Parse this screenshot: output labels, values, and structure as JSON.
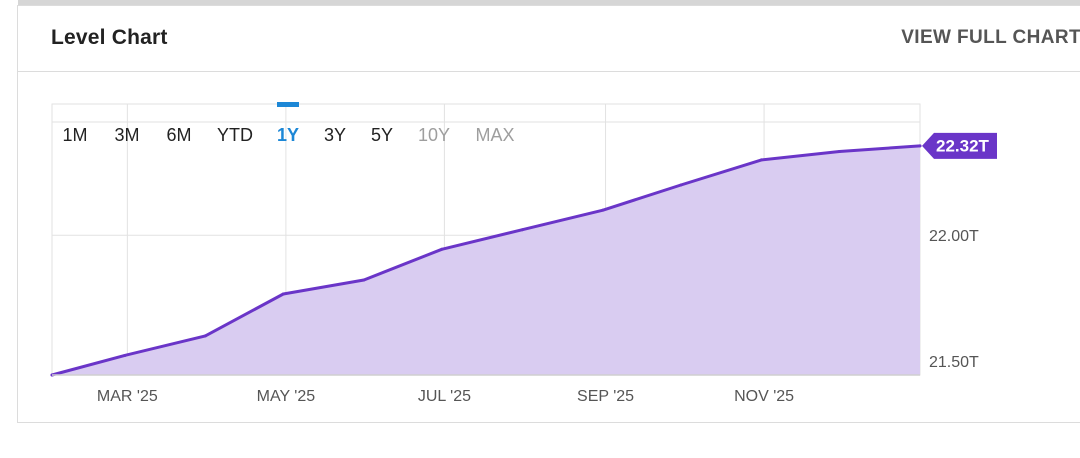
{
  "card": {
    "title": "Level Chart",
    "view_full_chart": "VIEW FULL CHART"
  },
  "colors": {
    "line": "#6a35c8",
    "fill": "#d9ccf1",
    "active_range": "#1c87d6",
    "disabled_range": "#9e9e9e",
    "grid": "#e2e2e2",
    "axis_text": "#555555",
    "value_badge": "#6a35c8"
  },
  "ranges": [
    {
      "label": "1M",
      "state": "normal"
    },
    {
      "label": "3M",
      "state": "normal"
    },
    {
      "label": "6M",
      "state": "normal"
    },
    {
      "label": "YTD",
      "state": "normal"
    },
    {
      "label": "1Y",
      "state": "active"
    },
    {
      "label": "3Y",
      "state": "normal"
    },
    {
      "label": "5Y",
      "state": "normal"
    },
    {
      "label": "10Y",
      "state": "disabled"
    },
    {
      "label": "MAX",
      "state": "disabled"
    }
  ],
  "chart_data": {
    "type": "area",
    "title": "",
    "xlabel": "",
    "ylabel": "",
    "x": [
      "2025-01-31",
      "2025-02-28",
      "2025-03-31",
      "2025-04-30",
      "2025-05-31",
      "2025-06-30",
      "2025-07-31",
      "2025-08-31",
      "2025-09-30",
      "2025-10-31",
      "2025-11-30",
      "2025-12-31"
    ],
    "series": [
      {
        "values": [
          21.5,
          21.57,
          21.64,
          21.79,
          21.84,
          21.95,
          22.02,
          22.09,
          22.18,
          22.27,
          22.3,
          22.32
        ]
      }
    ],
    "x_tick_labels": [
      "MAR '25",
      "MAY '25",
      "JUL '25",
      "SEP '25",
      "NOV '25"
    ],
    "x_tick_dates": [
      "2025-03-01",
      "2025-05-01",
      "2025-07-01",
      "2025-09-01",
      "2025-11-01"
    ],
    "y_ticks": [
      21.5,
      22.0
    ],
    "y_tick_labels": [
      "21.50T",
      "22.00T"
    ],
    "ylim": [
      21.5,
      22.47
    ],
    "xlim": [
      "2025-01-31",
      "2025-12-31"
    ],
    "last_value_label": "22.32T",
    "grid": true,
    "legend": "none"
  }
}
